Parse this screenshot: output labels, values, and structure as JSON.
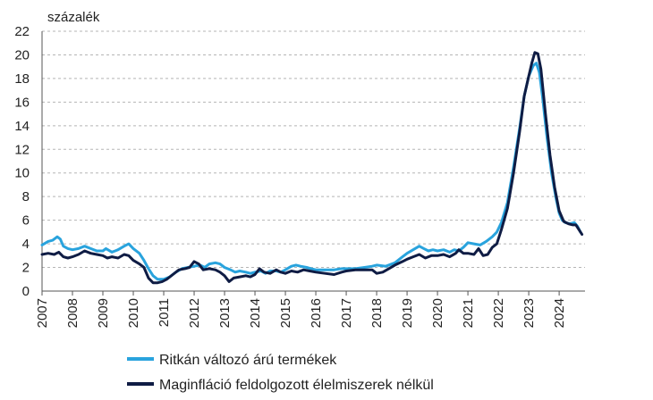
{
  "chart_data": {
    "type": "line",
    "ylabel": "százalék",
    "ylim": [
      0,
      22
    ],
    "yticks": [
      0,
      2,
      4,
      6,
      8,
      10,
      12,
      14,
      16,
      18,
      20,
      22
    ],
    "xlim": [
      2007,
      2024.75
    ],
    "xticks": [
      "2007",
      "2008",
      "2009",
      "2010",
      "2011",
      "2012",
      "2013",
      "2014",
      "2015",
      "2016",
      "2017",
      "2018",
      "2019",
      "2020",
      "2021",
      "2022",
      "2023",
      "2024"
    ],
    "grid": "horizontal-dashed",
    "legend_position": "bottom",
    "series": [
      {
        "name": "Ritkán változó árú termékek",
        "color": "#29a3dd",
        "points": [
          [
            2007.0,
            3.9
          ],
          [
            2007.2,
            4.2
          ],
          [
            2007.35,
            4.3
          ],
          [
            2007.5,
            4.6
          ],
          [
            2007.6,
            4.4
          ],
          [
            2007.7,
            3.8
          ],
          [
            2007.85,
            3.6
          ],
          [
            2008.0,
            3.5
          ],
          [
            2008.2,
            3.6
          ],
          [
            2008.4,
            3.8
          ],
          [
            2008.6,
            3.6
          ],
          [
            2008.8,
            3.4
          ],
          [
            2009.0,
            3.4
          ],
          [
            2009.1,
            3.6
          ],
          [
            2009.3,
            3.3
          ],
          [
            2009.5,
            3.5
          ],
          [
            2009.7,
            3.8
          ],
          [
            2009.85,
            4.0
          ],
          [
            2010.0,
            3.6
          ],
          [
            2010.2,
            3.2
          ],
          [
            2010.35,
            2.6
          ],
          [
            2010.5,
            1.9
          ],
          [
            2010.65,
            1.3
          ],
          [
            2010.8,
            1.0
          ],
          [
            2011.0,
            1.0
          ],
          [
            2011.2,
            1.2
          ],
          [
            2011.4,
            1.6
          ],
          [
            2011.6,
            1.9
          ],
          [
            2011.8,
            2.0
          ],
          [
            2012.0,
            2.1
          ],
          [
            2012.2,
            2.2
          ],
          [
            2012.35,
            2.0
          ],
          [
            2012.5,
            2.3
          ],
          [
            2012.7,
            2.4
          ],
          [
            2012.85,
            2.3
          ],
          [
            2013.0,
            2.0
          ],
          [
            2013.2,
            1.8
          ],
          [
            2013.35,
            1.6
          ],
          [
            2013.5,
            1.7
          ],
          [
            2013.7,
            1.6
          ],
          [
            2013.85,
            1.5
          ],
          [
            2014.0,
            1.6
          ],
          [
            2014.2,
            1.7
          ],
          [
            2014.35,
            1.5
          ],
          [
            2014.5,
            1.7
          ],
          [
            2014.7,
            1.7
          ],
          [
            2014.85,
            1.6
          ],
          [
            2015.0,
            1.8
          ],
          [
            2015.2,
            2.1
          ],
          [
            2015.35,
            2.2
          ],
          [
            2015.5,
            2.1
          ],
          [
            2015.7,
            2.0
          ],
          [
            2015.85,
            1.9
          ],
          [
            2016.0,
            1.8
          ],
          [
            2016.3,
            1.8
          ],
          [
            2016.6,
            1.8
          ],
          [
            2016.85,
            1.9
          ],
          [
            2017.0,
            1.9
          ],
          [
            2017.3,
            1.9
          ],
          [
            2017.6,
            2.0
          ],
          [
            2017.85,
            2.1
          ],
          [
            2018.0,
            2.2
          ],
          [
            2018.3,
            2.1
          ],
          [
            2018.6,
            2.4
          ],
          [
            2018.85,
            2.9
          ],
          [
            2019.0,
            3.2
          ],
          [
            2019.2,
            3.5
          ],
          [
            2019.4,
            3.8
          ],
          [
            2019.55,
            3.6
          ],
          [
            2019.7,
            3.4
          ],
          [
            2019.85,
            3.5
          ],
          [
            2020.0,
            3.4
          ],
          [
            2020.2,
            3.5
          ],
          [
            2020.4,
            3.3
          ],
          [
            2020.55,
            3.5
          ],
          [
            2020.7,
            3.4
          ],
          [
            2020.85,
            3.7
          ],
          [
            2021.0,
            4.1
          ],
          [
            2021.2,
            4.0
          ],
          [
            2021.4,
            3.9
          ],
          [
            2021.6,
            4.2
          ],
          [
            2021.8,
            4.6
          ],
          [
            2021.95,
            5.0
          ],
          [
            2022.1,
            5.8
          ],
          [
            2022.3,
            7.5
          ],
          [
            2022.5,
            10.5
          ],
          [
            2022.7,
            13.8
          ],
          [
            2022.85,
            16.5
          ],
          [
            2023.0,
            18.2
          ],
          [
            2023.15,
            19.1
          ],
          [
            2023.25,
            19.3
          ],
          [
            2023.35,
            18.5
          ],
          [
            2023.45,
            16.5
          ],
          [
            2023.6,
            13.0
          ],
          [
            2023.75,
            10.0
          ],
          [
            2023.9,
            7.8
          ],
          [
            2024.0,
            6.6
          ],
          [
            2024.1,
            6.0
          ],
          [
            2024.2,
            5.8
          ],
          [
            2024.35,
            5.7
          ],
          [
            2024.5,
            5.8
          ],
          [
            2024.6,
            5.5
          ],
          [
            2024.7,
            5.0
          ]
        ]
      },
      {
        "name": "Maginfláció feldolgozott élelmiszerek nélkül",
        "color": "#0f1c44",
        "points": [
          [
            2007.0,
            3.1
          ],
          [
            2007.2,
            3.2
          ],
          [
            2007.4,
            3.1
          ],
          [
            2007.55,
            3.3
          ],
          [
            2007.7,
            2.9
          ],
          [
            2007.85,
            2.8
          ],
          [
            2008.0,
            2.9
          ],
          [
            2008.2,
            3.1
          ],
          [
            2008.4,
            3.4
          ],
          [
            2008.6,
            3.2
          ],
          [
            2008.8,
            3.1
          ],
          [
            2009.0,
            3.0
          ],
          [
            2009.15,
            2.8
          ],
          [
            2009.3,
            2.9
          ],
          [
            2009.5,
            2.8
          ],
          [
            2009.7,
            3.1
          ],
          [
            2009.85,
            3.0
          ],
          [
            2010.0,
            2.6
          ],
          [
            2010.2,
            2.3
          ],
          [
            2010.35,
            2.0
          ],
          [
            2010.5,
            1.1
          ],
          [
            2010.65,
            0.7
          ],
          [
            2010.8,
            0.7
          ],
          [
            2010.95,
            0.8
          ],
          [
            2011.1,
            1.0
          ],
          [
            2011.3,
            1.4
          ],
          [
            2011.5,
            1.8
          ],
          [
            2011.7,
            1.9
          ],
          [
            2011.85,
            2.0
          ],
          [
            2012.0,
            2.5
          ],
          [
            2012.15,
            2.3
          ],
          [
            2012.3,
            1.8
          ],
          [
            2012.5,
            1.9
          ],
          [
            2012.7,
            1.8
          ],
          [
            2012.85,
            1.6
          ],
          [
            2013.0,
            1.3
          ],
          [
            2013.15,
            0.8
          ],
          [
            2013.3,
            1.1
          ],
          [
            2013.5,
            1.2
          ],
          [
            2013.7,
            1.3
          ],
          [
            2013.85,
            1.2
          ],
          [
            2014.0,
            1.4
          ],
          [
            2014.15,
            1.9
          ],
          [
            2014.3,
            1.6
          ],
          [
            2014.5,
            1.5
          ],
          [
            2014.7,
            1.8
          ],
          [
            2014.85,
            1.6
          ],
          [
            2015.0,
            1.5
          ],
          [
            2015.2,
            1.7
          ],
          [
            2015.4,
            1.6
          ],
          [
            2015.6,
            1.8
          ],
          [
            2015.8,
            1.7
          ],
          [
            2016.0,
            1.6
          ],
          [
            2016.3,
            1.5
          ],
          [
            2016.6,
            1.4
          ],
          [
            2016.85,
            1.6
          ],
          [
            2017.0,
            1.7
          ],
          [
            2017.3,
            1.8
          ],
          [
            2017.6,
            1.8
          ],
          [
            2017.85,
            1.8
          ],
          [
            2018.0,
            1.5
          ],
          [
            2018.2,
            1.6
          ],
          [
            2018.4,
            1.9
          ],
          [
            2018.6,
            2.2
          ],
          [
            2018.85,
            2.5
          ],
          [
            2019.0,
            2.7
          ],
          [
            2019.2,
            2.9
          ],
          [
            2019.4,
            3.1
          ],
          [
            2019.6,
            2.8
          ],
          [
            2019.8,
            3.0
          ],
          [
            2020.0,
            3.0
          ],
          [
            2020.2,
            3.1
          ],
          [
            2020.4,
            2.9
          ],
          [
            2020.6,
            3.2
          ],
          [
            2020.7,
            3.5
          ],
          [
            2020.85,
            3.2
          ],
          [
            2021.0,
            3.2
          ],
          [
            2021.2,
            3.1
          ],
          [
            2021.35,
            3.6
          ],
          [
            2021.5,
            3.0
          ],
          [
            2021.65,
            3.1
          ],
          [
            2021.8,
            3.7
          ],
          [
            2021.95,
            4.0
          ],
          [
            2022.1,
            5.2
          ],
          [
            2022.3,
            7.0
          ],
          [
            2022.5,
            10.0
          ],
          [
            2022.7,
            13.5
          ],
          [
            2022.85,
            16.5
          ],
          [
            2023.0,
            18.2
          ],
          [
            2023.1,
            19.3
          ],
          [
            2023.2,
            20.2
          ],
          [
            2023.3,
            20.1
          ],
          [
            2023.4,
            18.8
          ],
          [
            2023.55,
            15.0
          ],
          [
            2023.7,
            11.5
          ],
          [
            2023.85,
            8.8
          ],
          [
            2024.0,
            6.8
          ],
          [
            2024.15,
            5.9
          ],
          [
            2024.3,
            5.7
          ],
          [
            2024.45,
            5.6
          ],
          [
            2024.55,
            5.6
          ],
          [
            2024.65,
            5.2
          ],
          [
            2024.75,
            4.8
          ]
        ]
      }
    ]
  }
}
